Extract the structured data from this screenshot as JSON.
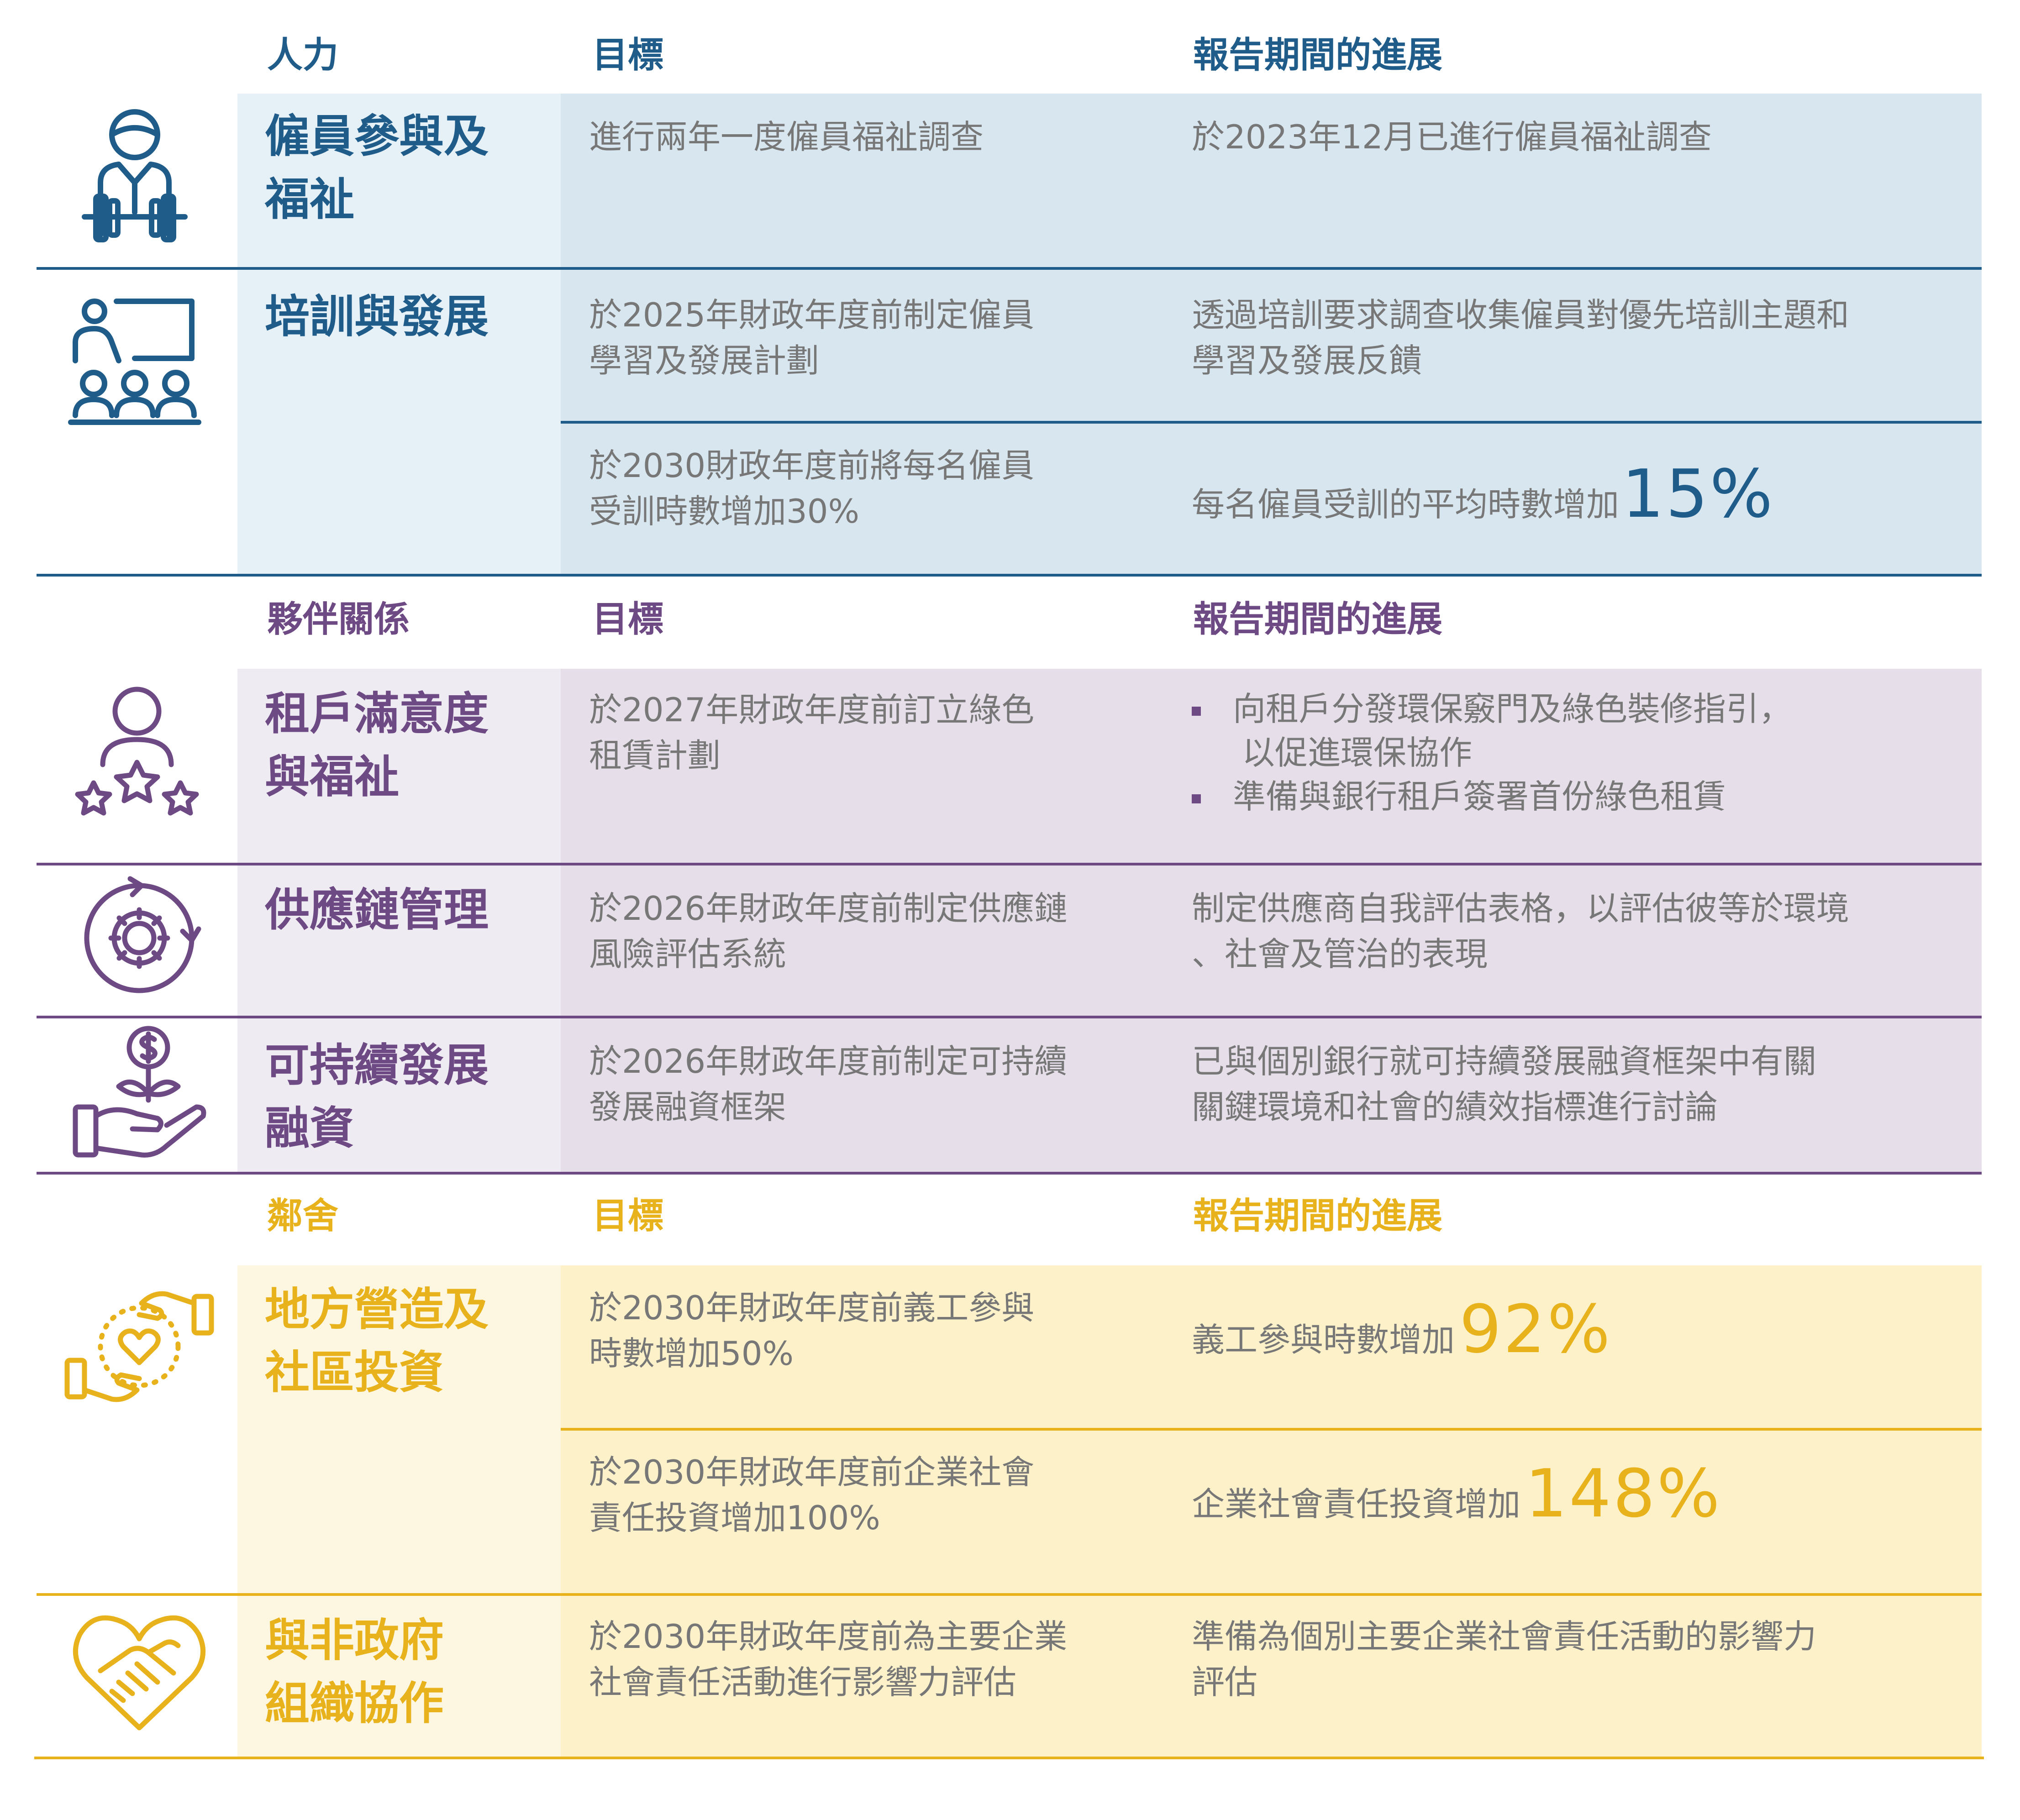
{
  "sections": {
    "people": {
      "header": {
        "category": "人力",
        "target": "目標",
        "progress": "報告期間的進展"
      },
      "rows": [
        {
          "topic": [
            "僱員參與及",
            "福祉"
          ],
          "items": [
            {
              "target": [
                "進行兩年一度僱員福祉調查"
              ],
              "progress": [
                "於2023年12月已進行僱員福祉調查"
              ]
            }
          ]
        },
        {
          "topic": [
            "培訓與發展"
          ],
          "items": [
            {
              "target": [
                "於2025年財政年度前制定僱員",
                "學習及發展計劃"
              ],
              "progress": [
                "透過培訓要求調查收集僱員對優先培訓主題和",
                "學習及發展反饋"
              ]
            },
            {
              "target": [
                "於2030財政年度前將每名僱員",
                "受訓時數增加30%"
              ],
              "progress_prefix": "每名僱員受訓的平均時數增加",
              "progress_big": "15%"
            }
          ]
        }
      ]
    },
    "partnership": {
      "header": {
        "category": "夥伴關係",
        "target": "目標",
        "progress": "報告期間的進展"
      },
      "rows": [
        {
          "topic": [
            "租戶滿意度",
            "與福祉"
          ],
          "target": [
            "於2027年財政年度前訂立綠色",
            "租賃計劃"
          ],
          "bullets": [
            [
              "向租戶分發環保竅門及綠色裝修指引，",
              "以促進環保協作"
            ],
            [
              "準備與銀行租戶簽署首份綠色租賃"
            ]
          ]
        },
        {
          "topic": [
            "供應鏈管理"
          ],
          "target": [
            "於2026年財政年度前制定供應鏈",
            "風險評估系統"
          ],
          "progress": [
            "制定供應商自我評估表格，以評估彼等於環境",
            "、社會及管治的表現"
          ]
        },
        {
          "topic": [
            "可持續發展",
            "融資"
          ],
          "target": [
            "於2026年財政年度前制定可持續",
            "發展融資框架"
          ],
          "progress": [
            "已與個別銀行就可持續發展融資框架中有關",
            "關鍵環境和社會的績效指標進行討論"
          ]
        }
      ]
    },
    "community": {
      "header": {
        "category": "鄰舍",
        "target": "目標",
        "progress": "報告期間的進展"
      },
      "rows": [
        {
          "topic": [
            "地方營造及",
            "社區投資"
          ],
          "items": [
            {
              "target": [
                "於2030年財政年度前義工參與",
                "時數增加50%"
              ],
              "progress_prefix": "義工參與時數增加 ",
              "progress_big": "92%"
            },
            {
              "target": [
                "於2030年財政年度前企業社會",
                "責任投資增加100%"
              ],
              "progress_prefix": "企業社會責任投資增加 ",
              "progress_big": "148%"
            }
          ]
        },
        {
          "topic": [
            "與非政府",
            "組織協作"
          ],
          "target": [
            "於2030年財政年度前為主要企業",
            "社會責任活動進行影響力評估"
          ],
          "progress": [
            "準備為個別主要企業社會責任活動的影響力",
            "評估"
          ]
        }
      ]
    }
  },
  "icons": {
    "people": [
      "weightlifter-icon",
      "training-class-icon"
    ],
    "partnership": [
      "tenant-rating-icon",
      "supply-chain-gear-icon",
      "sustainable-finance-icon"
    ],
    "community": [
      "caring-hands-heart-icon",
      "handshake-heart-icon"
    ]
  },
  "colors": {
    "blue": "#1F5C8A",
    "blue_light": "#E6F0F7",
    "blue_mid": "#D8E6F0",
    "purple": "#6E4A84",
    "purple_light": "#EFEBF2",
    "purple_mid": "#E6DFEA",
    "gold": "#E8B21C",
    "gold_light": "#FDF7E1",
    "gold_mid": "#FCF1C8"
  }
}
